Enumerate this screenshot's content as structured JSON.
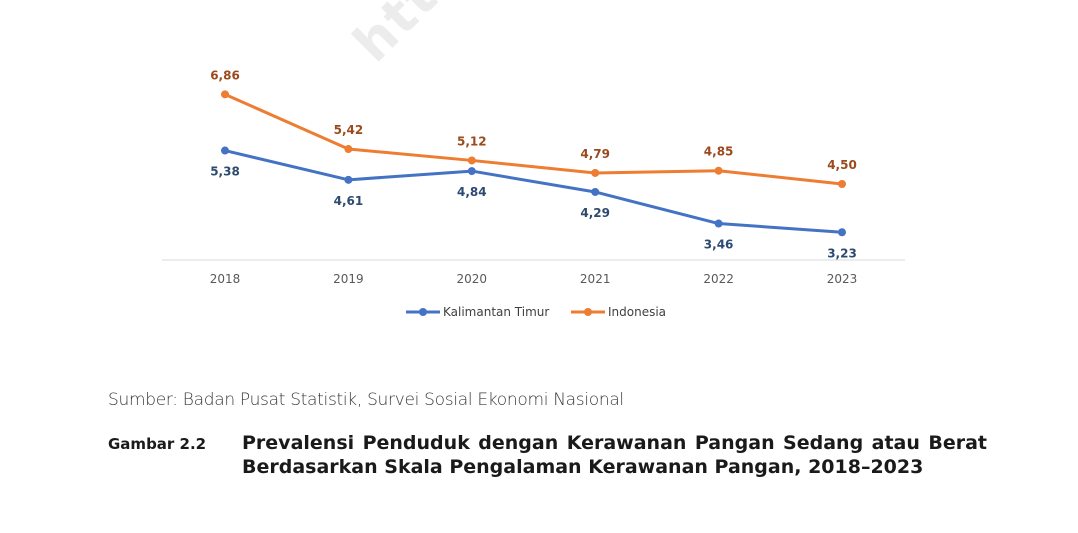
{
  "watermark": "htt",
  "chart_data": {
    "type": "line",
    "categories": [
      "2018",
      "2019",
      "2020",
      "2021",
      "2022",
      "2023"
    ],
    "series": [
      {
        "name": "Kalimantan Timur",
        "values": [
          5.38,
          4.61,
          4.84,
          4.29,
          3.46,
          3.23
        ],
        "labels": [
          "5,38",
          "4,61",
          "4,84",
          "4,29",
          "3,46",
          "3,23"
        ],
        "color": "#4472c4",
        "label_color": "#2e4a70"
      },
      {
        "name": "Indonesia",
        "values": [
          6.86,
          5.42,
          5.12,
          4.79,
          4.85,
          4.5
        ],
        "labels": [
          "6,86",
          "5,42",
          "5,12",
          "4,79",
          "4,85",
          "4,50"
        ],
        "color": "#ed7d31",
        "label_color": "#9a4a1c"
      }
    ],
    "ylim": [
      2.5,
      7.5
    ],
    "grid": false,
    "legend_position": "bottom",
    "title": "",
    "xlabel": "",
    "ylabel": ""
  },
  "source": "Sumber: Badan Pusat Statistik, Survei Sosial Ekonomi Nasional",
  "caption": {
    "label": "Gambar 2.2",
    "text": "Prevalensi Penduduk dengan Kerawanan Pangan Sedang atau Berat Berdasarkan Skala Pengalaman Kerawanan Pangan, 2018–2023"
  }
}
